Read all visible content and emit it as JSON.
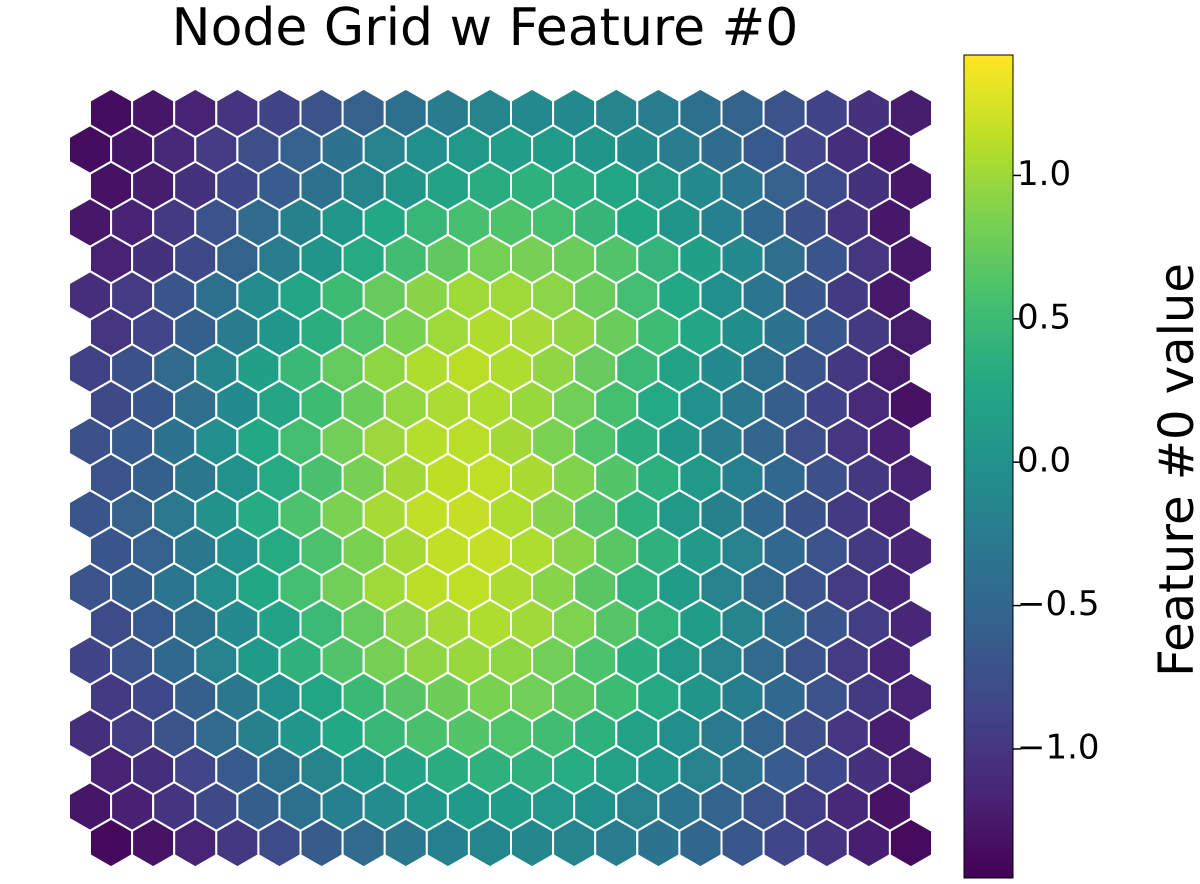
{
  "chart_data": {
    "type": "heatmap",
    "subtype": "hexagonal-grid",
    "title": "Node Grid w Feature #0",
    "rows": 21,
    "cols": 20,
    "colormap": "viridis",
    "colorbar": {
      "label": "Feature #0 value",
      "range": [
        -1.45,
        1.42
      ],
      "ticks": [
        -1.0,
        -0.5,
        0.0,
        0.5,
        1.0
      ],
      "tick_labels": [
        "−1.0",
        "−0.5",
        "0.0",
        "0.5",
        "1.0"
      ]
    },
    "values": [
      [
        -1.35,
        -1.28,
        -1.17,
        -1.02,
        -0.87,
        -0.71,
        -0.55,
        -0.39,
        -0.26,
        -0.16,
        -0.11,
        -0.11,
        -0.16,
        -0.25,
        -0.39,
        -0.54,
        -0.71,
        -0.88,
        -1.05,
        -1.22
      ],
      [
        -1.35,
        -1.28,
        -1.12,
        -0.95,
        -0.77,
        -0.57,
        -0.37,
        -0.19,
        -0.03,
        0.09,
        0.14,
        0.12,
        0.04,
        -0.08,
        -0.25,
        -0.44,
        -0.65,
        -0.86,
        -1.06,
        -1.25
      ],
      [
        -1.31,
        -1.22,
        -1.04,
        -0.84,
        -0.61,
        -0.38,
        -0.16,
        0.04,
        0.21,
        0.33,
        0.38,
        0.34,
        0.24,
        0.09,
        -0.1,
        -0.32,
        -0.56,
        -0.8,
        -1.04,
        -1.26
      ],
      [
        -1.26,
        -1.17,
        -0.97,
        -0.73,
        -0.46,
        -0.2,
        0.05,
        0.27,
        0.45,
        0.57,
        0.61,
        0.56,
        0.44,
        0.26,
        0.04,
        -0.21,
        -0.48,
        -0.75,
        -1.02,
        -1.27
      ],
      [
        -1.17,
        -1.04,
        -0.81,
        -0.54,
        -0.25,
        0.04,
        0.3,
        0.53,
        0.7,
        0.81,
        0.83,
        0.77,
        0.63,
        0.42,
        0.17,
        -0.1,
        -0.4,
        -0.7,
        -0.99,
        -1.26
      ],
      [
        -1.07,
        -0.95,
        -0.69,
        -0.39,
        -0.07,
        0.23,
        0.51,
        0.74,
        0.91,
        1.0,
        1.0,
        0.92,
        0.76,
        0.54,
        0.27,
        -0.03,
        -0.34,
        -0.66,
        -0.97,
        -1.25
      ],
      [
        -0.99,
        -0.86,
        -0.59,
        -0.27,
        0.05,
        0.35,
        0.62,
        0.84,
        1.0,
        1.07,
        1.04,
        0.94,
        0.76,
        0.52,
        0.25,
        -0.05,
        -0.36,
        -0.67,
        -0.97,
        -1.24
      ],
      [
        -0.89,
        -0.74,
        -0.46,
        -0.14,
        0.17,
        0.47,
        0.73,
        0.93,
        1.07,
        1.12,
        1.07,
        0.94,
        0.74,
        0.49,
        0.21,
        -0.09,
        -0.39,
        -0.69,
        -0.98,
        -1.24
      ],
      [
        -0.81,
        -0.68,
        -0.4,
        -0.09,
        0.22,
        0.51,
        0.76,
        0.95,
        1.06,
        1.07,
        0.98,
        0.8,
        0.56,
        0.28,
        -0.01,
        -0.31,
        -0.6,
        -0.87,
        -1.11,
        -1.31
      ],
      [
        -0.75,
        -0.63,
        -0.35,
        -0.04,
        0.27,
        0.55,
        0.8,
        0.99,
        1.1,
        1.11,
        1.02,
        0.85,
        0.62,
        0.35,
        0.06,
        -0.23,
        -0.51,
        -0.77,
        -1.0,
        -1.19
      ],
      [
        -0.71,
        -0.58,
        -0.31,
        -0.01,
        0.3,
        0.58,
        0.83,
        1.02,
        1.13,
        1.14,
        1.05,
        0.88,
        0.64,
        0.37,
        0.08,
        -0.21,
        -0.49,
        -0.75,
        -0.98,
        -1.17
      ],
      [
        -0.69,
        -0.56,
        -0.29,
        0.01,
        0.31,
        0.6,
        0.85,
        1.04,
        1.15,
        1.16,
        1.07,
        0.89,
        0.65,
        0.38,
        0.09,
        -0.2,
        -0.48,
        -0.74,
        -0.97,
        -1.16
      ],
      [
        -0.7,
        -0.57,
        -0.3,
        0.0,
        0.3,
        0.59,
        0.84,
        1.03,
        1.15,
        1.16,
        1.07,
        0.9,
        0.67,
        0.39,
        0.1,
        -0.19,
        -0.47,
        -0.73,
        -0.96,
        -1.15
      ],
      [
        -0.73,
        -0.6,
        -0.33,
        -0.04,
        0.26,
        0.55,
        0.8,
        1.0,
        1.12,
        1.14,
        1.06,
        0.9,
        0.67,
        0.4,
        0.12,
        -0.17,
        -0.45,
        -0.71,
        -0.95,
        -1.15
      ],
      [
        -0.79,
        -0.65,
        -0.39,
        -0.1,
        0.2,
        0.48,
        0.73,
        0.92,
        1.04,
        1.07,
        1.01,
        0.86,
        0.65,
        0.4,
        0.12,
        -0.16,
        -0.44,
        -0.7,
        -0.94,
        -1.14
      ],
      [
        -0.87,
        -0.73,
        -0.47,
        -0.18,
        0.11,
        0.39,
        0.63,
        0.82,
        0.94,
        0.98,
        0.93,
        0.8,
        0.6,
        0.36,
        0.09,
        -0.18,
        -0.45,
        -0.71,
        -0.95,
        -1.15
      ],
      [
        -0.96,
        -0.83,
        -0.58,
        -0.31,
        -0.03,
        0.24,
        0.47,
        0.66,
        0.78,
        0.84,
        0.8,
        0.69,
        0.51,
        0.29,
        0.04,
        -0.22,
        -0.48,
        -0.73,
        -0.97,
        -1.17
      ],
      [
        -1.06,
        -0.94,
        -0.71,
        -0.46,
        -0.2,
        0.05,
        0.27,
        0.45,
        0.58,
        0.64,
        0.62,
        0.53,
        0.38,
        0.19,
        -0.04,
        -0.28,
        -0.53,
        -0.77,
        -1.0,
        -1.2
      ],
      [
        -1.17,
        -1.06,
        -0.86,
        -0.63,
        -0.39,
        -0.16,
        0.05,
        0.21,
        0.33,
        0.39,
        0.39,
        0.32,
        0.19,
        0.03,
        -0.17,
        -0.38,
        -0.61,
        -0.83,
        -1.05,
        -1.24
      ],
      [
        -1.28,
        -1.19,
        -1.01,
        -0.81,
        -0.6,
        -0.39,
        -0.21,
        -0.06,
        0.05,
        0.11,
        0.12,
        0.07,
        -0.03,
        -0.17,
        -0.34,
        -0.53,
        -0.73,
        -0.93,
        -1.12,
        -1.3
      ],
      [
        -1.38,
        -1.3,
        -1.16,
        -0.98,
        -0.8,
        -0.62,
        -0.45,
        -0.31,
        -0.21,
        -0.15,
        -0.13,
        -0.16,
        -0.24,
        -0.35,
        -0.5,
        -0.67,
        -0.84,
        -1.02,
        -1.2,
        -1.36
      ]
    ]
  }
}
